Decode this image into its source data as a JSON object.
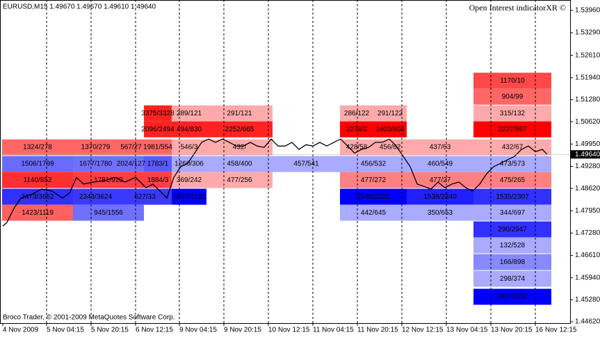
{
  "chart_data": {
    "type": "line",
    "title": "EURUSD,M15  1.49670 1.49670 1.49610 1.49640",
    "indicator": "Open Interest indicatorXR ©",
    "footer": "Broco Trader, © 2001-2009 MetaQuotes Software Corp.",
    "ylim": [
      1.4458,
      1.5427
    ],
    "xlim": [
      -4,
      816
    ],
    "yticks": [
      {
        "value": 1.5396,
        "label": "1.53960"
      },
      {
        "value": 1.5329,
        "label": "1.53290"
      },
      {
        "value": 1.5261,
        "label": "1.52610"
      },
      {
        "value": 1.5194,
        "label": "1.51940"
      },
      {
        "value": 1.5128,
        "label": "1.51280"
      },
      {
        "value": 1.5062,
        "label": "1.50620"
      },
      {
        "value": 1.4995,
        "label": "1.49950"
      },
      {
        "value": 1.4928,
        "label": "1.49280"
      },
      {
        "value": 1.4862,
        "label": "1.48620"
      },
      {
        "value": 1.4795,
        "label": "1.47950"
      },
      {
        "value": 1.4728,
        "label": "1.47280"
      },
      {
        "value": 1.4661,
        "label": "1.46610"
      },
      {
        "value": 1.4594,
        "label": "1.45940"
      },
      {
        "value": 1.4528,
        "label": "1.45280"
      },
      {
        "value": 1.4462,
        "label": "1.44620"
      }
    ],
    "xticks": [
      {
        "value": 0,
        "label": "4 Nov 2009"
      },
      {
        "value": 63,
        "label": "5 Nov 04:15"
      },
      {
        "value": 127,
        "label": "5 Nov 20:15"
      },
      {
        "value": 191,
        "label": "6 Nov 12:15"
      },
      {
        "value": 254,
        "label": "9 Nov 04:15"
      },
      {
        "value": 318,
        "label": "9 Nov 20:15"
      },
      {
        "value": 382,
        "label": "10 Nov 12:15"
      },
      {
        "value": 446,
        "label": "11 Nov 04:15"
      },
      {
        "value": 510,
        "label": "11 Nov 20:15"
      },
      {
        "value": 574,
        "label": "12 Nov 12:15"
      },
      {
        "value": 638,
        "label": "13 Nov 04:15"
      },
      {
        "value": 702,
        "label": "13 Nov 20:15"
      },
      {
        "value": 766,
        "label": "16 Nov 12:15"
      }
    ],
    "grid": true,
    "last_price": {
      "value": 1.4964,
      "label": "1.49640"
    },
    "series": [
      {
        "name": "EURUSD",
        "color": "#000000",
        "x": [
          0,
          6,
          16,
          26,
          41,
          56,
          71,
          86,
          96,
          106,
          116,
          131,
          146,
          161,
          176,
          191,
          206,
          216,
          226,
          236,
          246,
          256,
          266,
          276,
          286,
          296,
          306,
          316,
          326,
          336,
          346,
          356,
          366,
          376,
          386,
          396,
          406,
          416,
          426,
          436,
          446,
          456,
          466,
          476,
          486,
          496,
          506,
          516,
          526,
          536,
          546,
          556,
          566,
          576,
          586,
          596,
          606,
          616,
          626,
          636,
          646,
          656,
          666,
          676,
          686,
          696,
          706,
          716,
          726,
          736,
          746,
          756,
          766,
          776,
          783
        ],
        "values": [
          1.4749,
          1.476,
          1.4802,
          1.4833,
          1.4843,
          1.486,
          1.4854,
          1.4833,
          1.4848,
          1.4895,
          1.4875,
          1.4881,
          1.4885,
          1.4895,
          1.4881,
          1.4895,
          1.4864,
          1.4875,
          1.4854,
          1.4833,
          1.4895,
          1.4927,
          1.4937,
          1.4968,
          1.5,
          1.501,
          1.5,
          1.501,
          1.5,
          1.4989,
          1.4989,
          1.5,
          1.4989,
          1.4985,
          1.501,
          1.4989,
          1.4989,
          1.5,
          1.4979,
          1.4993,
          1.4989,
          1.5,
          1.4989,
          1.5,
          1.501,
          1.4989,
          1.4968,
          1.4979,
          1.4985,
          1.5,
          1.5,
          1.501,
          1.4989,
          1.4958,
          1.4927,
          1.4875,
          1.4868,
          1.486,
          1.4881,
          1.4864,
          1.4875,
          1.4881,
          1.4864,
          1.4854,
          1.4875,
          1.4906,
          1.4927,
          1.4937,
          1.4948,
          1.4958,
          1.4979,
          1.4989,
          1.4972,
          1.4979,
          1.4964
        ]
      }
    ],
    "levels": [
      {
        "price": 1.5185,
        "x0": 677,
        "x1": 789,
        "color": "#ff4848",
        "label": "1170/10"
      },
      {
        "price": 1.5137,
        "x0": 677,
        "x1": 789,
        "color": "#ff6666",
        "label": "904/99"
      },
      {
        "price": 1.5087,
        "x0": 203,
        "x1": 243,
        "color": "#ff2222",
        "label": "3375/3328"
      },
      {
        "price": 1.5087,
        "x0": 243,
        "x1": 293,
        "color": "#ffaaaa",
        "label": "289/121"
      },
      {
        "price": 1.5087,
        "x0": 293,
        "x1": 388,
        "color": "#ffaaaa",
        "label": "291/121"
      },
      {
        "price": 1.5087,
        "x0": 485,
        "x1": 533,
        "color": "#ffaaaa",
        "label": "286/122"
      },
      {
        "price": 1.5087,
        "x0": 533,
        "x1": 581,
        "color": "#ffaaaa",
        "label": "291/122"
      },
      {
        "price": 1.5087,
        "x0": 677,
        "x1": 789,
        "color": "#ffaaaa",
        "label": "315/132"
      },
      {
        "price": 1.5039,
        "x0": 203,
        "x1": 243,
        "color": "#ff2222",
        "label": "2096/2494"
      },
      {
        "price": 1.5039,
        "x0": 243,
        "x1": 293,
        "color": "#ff2222",
        "label": "494/830"
      },
      {
        "price": 1.5039,
        "x0": 293,
        "x1": 388,
        "color": "#ff2222",
        "label": "2252/665"
      },
      {
        "price": 1.5039,
        "x0": 485,
        "x1": 533,
        "color": "#ff0000",
        "label": "2276/2"
      },
      {
        "price": 1.5039,
        "x0": 533,
        "x1": 581,
        "color": "#ff0000",
        "label": "2403/604"
      },
      {
        "price": 1.5039,
        "x0": 677,
        "x1": 789,
        "color": "#ff0000",
        "label": "2237/597"
      },
      {
        "price": 1.4985,
        "x0": -1,
        "x1": 101,
        "color": "#ff6666",
        "label": "1324/278"
      },
      {
        "price": 1.4985,
        "x0": 101,
        "x1": 166,
        "color": "#ff6666",
        "label": "1370/279"
      },
      {
        "price": 1.4985,
        "x0": 166,
        "x1": 203,
        "color": "#ff6666",
        "label": "567/27"
      },
      {
        "price": 1.4985,
        "x0": 203,
        "x1": 243,
        "color": "#ff6666",
        "label": "1981/554"
      },
      {
        "price": 1.4985,
        "x0": 243,
        "x1": 293,
        "color": "#ffaaaa",
        "label": "546/3"
      },
      {
        "price": 1.4985,
        "x0": 293,
        "x1": 388,
        "color": "#ffaaaa",
        "label": "432/"
      },
      {
        "price": 1.4985,
        "x0": 485,
        "x1": 533,
        "color": "#ffaaaa",
        "label": "428/58"
      },
      {
        "price": 1.4985,
        "x0": 533,
        "x1": 581,
        "color": "#ffaaaa",
        "label": "456/62"
      },
      {
        "price": 1.4985,
        "x0": 581,
        "x1": 677,
        "color": "#ffaaaa",
        "label": "437/63"
      },
      {
        "price": 1.4985,
        "x0": 677,
        "x1": 789,
        "color": "#ffaaaa",
        "label": "432/67"
      },
      {
        "price": 1.4935,
        "x0": -1,
        "x1": 101,
        "color": "#6a6aff",
        "label": "1506/1799"
      },
      {
        "price": 1.4935,
        "x0": 101,
        "x1": 166,
        "color": "#7070ff",
        "label": "1677/1780"
      },
      {
        "price": 1.4935,
        "x0": 166,
        "x1": 203,
        "color": "#7070ff",
        "label": "2024/127"
      },
      {
        "price": 1.4935,
        "x0": 203,
        "x1": 243,
        "color": "#5a5aff",
        "label": "1783/1"
      },
      {
        "price": 1.4935,
        "x0": 243,
        "x1": 293,
        "color": "#aaaaff",
        "label": "1260/306"
      },
      {
        "price": 1.4935,
        "x0": 293,
        "x1": 388,
        "color": "#aaaaff",
        "label": "458/400"
      },
      {
        "price": 1.4935,
        "x0": 388,
        "x1": 485,
        "color": "#aaaaff",
        "label": "457/541"
      },
      {
        "price": 1.4935,
        "x0": 485,
        "x1": 581,
        "color": "#aaaaff",
        "label": "456/532"
      },
      {
        "price": 1.4935,
        "x0": 581,
        "x1": 677,
        "color": "#aaaaff",
        "label": "460/549"
      },
      {
        "price": 1.4935,
        "x0": 677,
        "x1": 789,
        "color": "#aaaaff",
        "label": "473/573"
      },
      {
        "price": 1.4887,
        "x0": -1,
        "x1": 101,
        "color": "#ff3030",
        "label": "1140/852"
      },
      {
        "price": 1.4887,
        "x0": 101,
        "x1": 203,
        "color": "#ff4040",
        "label": "1781/920"
      },
      {
        "price": 1.4887,
        "x0": 203,
        "x1": 243,
        "color": "#ff4040",
        "label": "1884/3"
      },
      {
        "price": 1.4887,
        "x0": 243,
        "x1": 293,
        "color": "#ffaaaa",
        "label": "369/242"
      },
      {
        "price": 1.4887,
        "x0": 293,
        "x1": 388,
        "color": "#ffaaaa",
        "label": "477/256"
      },
      {
        "price": 1.4887,
        "x0": 485,
        "x1": 581,
        "color": "#ff8080",
        "label": "477/272"
      },
      {
        "price": 1.4887,
        "x0": 581,
        "x1": 677,
        "color": "#ff8080",
        "label": "477/27"
      },
      {
        "price": 1.4887,
        "x0": 677,
        "x1": 789,
        "color": "#ff8080",
        "label": "475/265"
      },
      {
        "price": 1.4837,
        "x0": -1,
        "x1": 101,
        "color": "#3030ff",
        "label": "2473/3652"
      },
      {
        "price": 1.4837,
        "x0": 101,
        "x1": 166,
        "color": "#3a3aff",
        "label": "2343/3624"
      },
      {
        "price": 1.4837,
        "x0": 166,
        "x1": 243,
        "color": "#3a3aff",
        "label": "627/33"
      },
      {
        "price": 1.4837,
        "x0": 243,
        "x1": 293,
        "color": "#0000ff",
        "label": "1497/2131"
      },
      {
        "price": 1.4837,
        "x0": 485,
        "x1": 581,
        "color": "#0000ff",
        "label": "1546/2222"
      },
      {
        "price": 1.4837,
        "x0": 581,
        "x1": 677,
        "color": "#2020ff",
        "label": "1538/2240"
      },
      {
        "price": 1.4837,
        "x0": 677,
        "x1": 789,
        "color": "#3030ff",
        "label": "1535/2307"
      },
      {
        "price": 1.4789,
        "x0": -1,
        "x1": 101,
        "color": "#ff6060",
        "label": "1423/1119"
      },
      {
        "price": 1.4789,
        "x0": 101,
        "x1": 203,
        "color": "#7070ff",
        "label": "945/1556"
      },
      {
        "price": 1.4789,
        "x0": 485,
        "x1": 581,
        "color": "#aaaaff",
        "label": "442/645"
      },
      {
        "price": 1.4789,
        "x0": 581,
        "x1": 677,
        "color": "#aaaaff",
        "label": "350/653"
      },
      {
        "price": 1.4789,
        "x0": 677,
        "x1": 789,
        "color": "#aaaaff",
        "label": "344/697"
      },
      {
        "price": 1.4739,
        "x0": 677,
        "x1": 789,
        "color": "#3030ff",
        "label": "290/2947"
      },
      {
        "price": 1.4691,
        "x0": 677,
        "x1": 789,
        "color": "#aaaaff",
        "label": "132/528"
      },
      {
        "price": 1.4641,
        "x0": 677,
        "x1": 789,
        "color": "#8888ff",
        "label": "166/898"
      },
      {
        "price": 1.4591,
        "x0": 677,
        "x1": 789,
        "color": "#aaaaff",
        "label": "298/374"
      },
      {
        "price": 1.4537,
        "x0": 677,
        "x1": 789,
        "color": "#0000ff",
        "label": "887/3102"
      }
    ]
  }
}
